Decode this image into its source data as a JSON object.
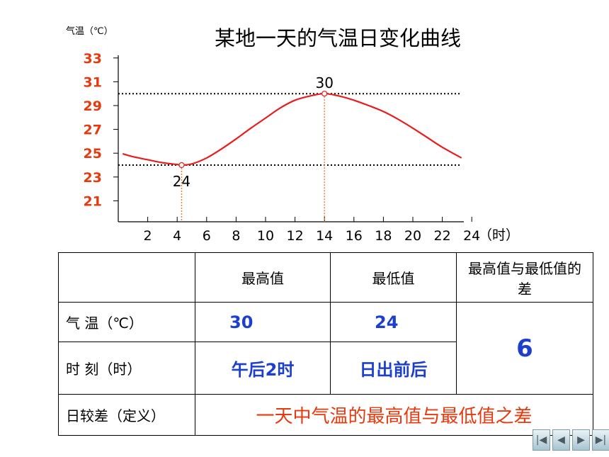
{
  "chart_data": {
    "type": "line",
    "title": "某地一天的气温日变化曲线",
    "ylabel": "气温（℃）",
    "xlabel": "（时）",
    "y_ticks": [
      21,
      23,
      25,
      27,
      29,
      31,
      33
    ],
    "x_ticks": [
      2,
      4,
      6,
      8,
      10,
      12,
      14,
      16,
      18,
      20,
      22,
      24
    ],
    "xlim": [
      0,
      24
    ],
    "ylim": [
      19.5,
      34
    ],
    "series": [
      {
        "color": "#e81d1d",
        "x": [
          0.3,
          1,
          2,
          3,
          4,
          4.3,
          5,
          6,
          7,
          8,
          9,
          10,
          11,
          12,
          13,
          14,
          15,
          16,
          17,
          18,
          19,
          20,
          21,
          22,
          23.3
        ],
        "y": [
          24.95,
          24.7,
          24.45,
          24.2,
          24.05,
          24,
          24.1,
          24.6,
          25.35,
          26.2,
          27.1,
          27.95,
          28.8,
          29.45,
          29.8,
          30,
          29.8,
          29.45,
          29.0,
          28.5,
          27.85,
          27.1,
          26.3,
          25.5,
          24.6
        ]
      }
    ],
    "annotations": [
      {
        "x": 14,
        "y": 30,
        "label": "30"
      },
      {
        "x": 4.3,
        "y": 24,
        "label": "24"
      }
    ]
  },
  "table": {
    "header": [
      "",
      "最高值",
      "最低值",
      "最高值与最低值的差"
    ],
    "rows": [
      {
        "label": "气  温（℃）",
        "max": "30",
        "min": "24",
        "diff": "6"
      },
      {
        "label": "时  刻（时）",
        "max": "午后2时",
        "min": "日出前后"
      },
      {
        "label": "日较差（定义）",
        "definition": "一天中气温的最高值与最低值之差"
      }
    ]
  },
  "nav": [
    "first-icon",
    "prev-icon",
    "next-icon",
    "last-icon"
  ]
}
